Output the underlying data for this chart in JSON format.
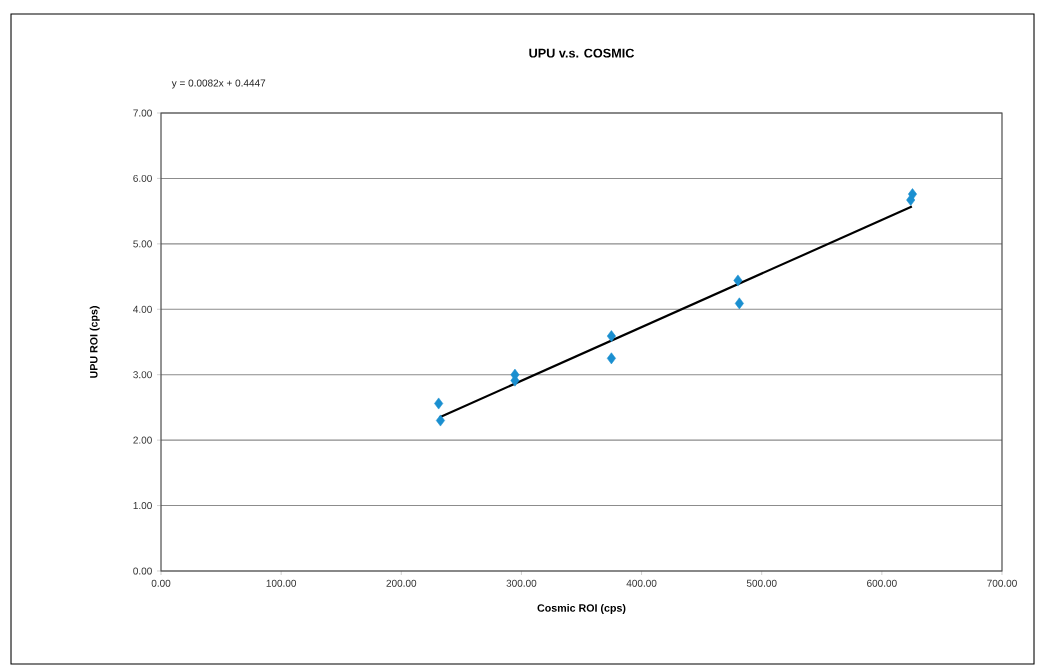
{
  "chart_data": {
    "type": "scatter",
    "title": "UPU v.s. COSMIC",
    "xlabel": "Cosmic ROI (cps)",
    "ylabel": "UPU ROI (cps)",
    "annotations": [
      "y = 0.0082x + 0.4447"
    ],
    "series": [
      {
        "marker": "diamond",
        "color": "#1a8fd0",
        "x": [
          231.1,
          232.6,
          294.6,
          294.6,
          374.9,
          374.9,
          480.2,
          481.4,
          625.5,
          624.0
        ],
        "values": [
          2.56,
          2.3,
          3.0,
          2.91,
          3.59,
          3.25,
          4.44,
          4.09,
          5.76,
          5.67
        ]
      },
      {
        "type": "line",
        "marker": "none",
        "color": "#000000",
        "x": [
          232,
          625
        ],
        "values": [
          2.35,
          5.57
        ]
      }
    ],
    "xlim": [
      0,
      700
    ],
    "ylim": [
      0,
      7
    ],
    "xticks": [
      {
        "value": 0,
        "label": "0.00"
      },
      {
        "value": 100,
        "label": "100.00"
      },
      {
        "value": 200,
        "label": "200.00"
      },
      {
        "value": 300,
        "label": "300.00"
      },
      {
        "value": 400,
        "label": "400.00"
      },
      {
        "value": 500,
        "label": "500.00"
      },
      {
        "value": 600,
        "label": "600.00"
      },
      {
        "value": 700,
        "label": "700.00"
      }
    ],
    "yticks": [
      {
        "value": 0,
        "label": "0.00"
      },
      {
        "value": 1,
        "label": "1.00"
      },
      {
        "value": 2,
        "label": "2.00"
      },
      {
        "value": 3,
        "label": "3.00"
      },
      {
        "value": 4,
        "label": "4.00"
      },
      {
        "value": 5,
        "label": "5.00"
      },
      {
        "value": 6,
        "label": "6.00"
      },
      {
        "value": 7,
        "label": "7.00"
      }
    ],
    "grid": "y"
  }
}
